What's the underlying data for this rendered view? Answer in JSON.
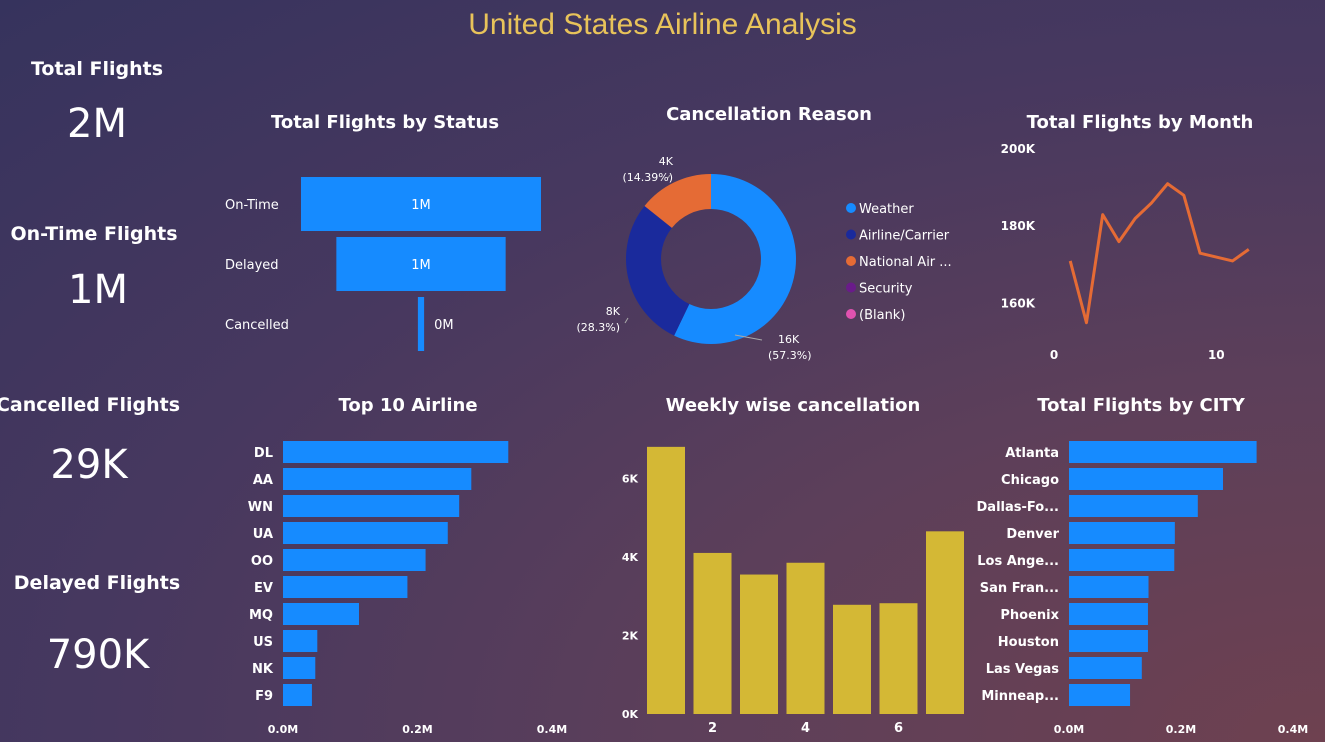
{
  "page_title": "United States Airline Analysis",
  "kpis": [
    {
      "label": "Total Flights",
      "value": "2M"
    },
    {
      "label": "On-Time Flights",
      "value": "1M"
    },
    {
      "label": "Cancelled Flights",
      "value": "29K"
    },
    {
      "label": "Delayed Flights",
      "value": "790K"
    }
  ],
  "colors": {
    "blue": "#168bff",
    "navy": "#1a2a9c",
    "orange": "#e56b35",
    "purple": "#6a1b8a",
    "pink": "#e152b0",
    "gold": "#d4b835",
    "line": "#e56b35",
    "title": "#e8c35a"
  },
  "chart_data": [
    {
      "type": "bar",
      "title": "Total Flights by Status",
      "orientation": "horizontal-funnel",
      "categories": [
        "On-Time",
        "Delayed",
        "Cancelled"
      ],
      "values": [
        1.12,
        0.79,
        0.029
      ],
      "value_unit": "M",
      "data_labels": [
        "1M",
        "1M",
        "0M"
      ]
    },
    {
      "type": "pie",
      "title": "Cancellation Reason",
      "donut": true,
      "legend": [
        "Weather",
        "Airline/Carrier",
        "National Air ...",
        "Security",
        "(Blank)"
      ],
      "values": [
        16,
        8,
        4,
        0,
        0
      ],
      "data_labels": [
        {
          "value": "16K",
          "pct": "(57.3%)"
        },
        {
          "value": "8K",
          "pct": "(28.3%)"
        },
        {
          "value": "4K",
          "pct": "(14.39%)"
        }
      ]
    },
    {
      "type": "line",
      "title": "Total Flights by Month",
      "x": [
        1,
        2,
        3,
        4,
        5,
        6,
        7,
        8,
        9,
        10,
        11,
        12
      ],
      "y": [
        171000,
        155000,
        183000,
        176000,
        182000,
        186000,
        191000,
        188000,
        173000,
        172000,
        171000,
        174000
      ],
      "y_ticks": [
        "200K",
        "180K",
        "160K"
      ],
      "y_tick_values": [
        200000,
        180000,
        160000
      ],
      "x_ticks": [
        "0",
        "10"
      ],
      "x_tick_values": [
        0,
        10
      ],
      "ylim": [
        150000,
        200000
      ],
      "xlim": [
        0,
        13
      ]
    },
    {
      "type": "bar",
      "title": "Top 10 Airline",
      "orientation": "horizontal",
      "categories": [
        "DL",
        "AA",
        "WN",
        "UA",
        "OO",
        "EV",
        "MQ",
        "US",
        "NK",
        "F9"
      ],
      "values": [
        0.335,
        0.28,
        0.262,
        0.245,
        0.212,
        0.185,
        0.113,
        0.051,
        0.048,
        0.043
      ],
      "x_ticks": [
        "0.0M",
        "0.2M",
        "0.4M"
      ],
      "x_tick_values": [
        0,
        0.2,
        0.4
      ],
      "xlim": [
        0,
        0.4
      ]
    },
    {
      "type": "bar",
      "title": "Weekly wise cancellation",
      "orientation": "vertical",
      "categories": [
        1,
        2,
        3,
        4,
        5,
        6,
        7
      ],
      "values": [
        6800,
        4100,
        3550,
        3850,
        2780,
        2820,
        4650
      ],
      "y_ticks": [
        "6K",
        "4K",
        "2K",
        "0K"
      ],
      "y_tick_values": [
        6000,
        4000,
        2000,
        0
      ],
      "x_ticks": [
        "2",
        "4",
        "6"
      ],
      "x_tick_values": [
        2,
        4,
        6
      ],
      "ylim": [
        0,
        7000
      ]
    },
    {
      "type": "bar",
      "title": "Total Flights by CITY",
      "orientation": "horizontal",
      "categories": [
        "Atlanta",
        "Chicago",
        "Dallas-Fo...",
        "Denver",
        "Los Ange...",
        "San Fran...",
        "Phoenix",
        "Houston",
        "Las Vegas",
        "Minneap..."
      ],
      "values": [
        0.335,
        0.275,
        0.23,
        0.189,
        0.188,
        0.142,
        0.141,
        0.141,
        0.13,
        0.109
      ],
      "x_ticks": [
        "0.0M",
        "0.2M",
        "0.4M"
      ],
      "x_tick_values": [
        0,
        0.2,
        0.4
      ],
      "xlim": [
        0,
        0.4
      ]
    }
  ]
}
